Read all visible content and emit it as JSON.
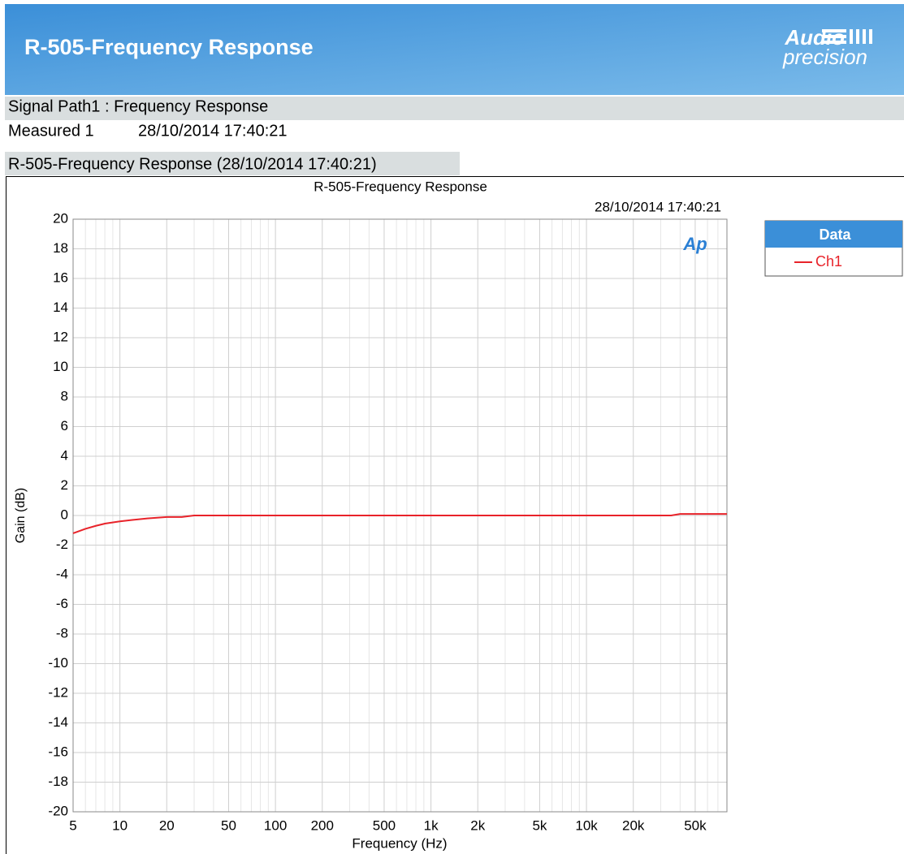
{
  "header": {
    "title": "R-505-Frequency Response",
    "logo_top": "Audio",
    "logo_bottom": "precision"
  },
  "sections": {
    "signal_path": "Signal Path1 : Frequency Response",
    "measured_label": "Measured 1",
    "measured_time": "28/10/2014 17:40:21",
    "graph_caption": "R-505-Frequency Response (28/10/2014 17:40:21)"
  },
  "chart_data": {
    "type": "line",
    "title": "R-505-Frequency Response",
    "timestamp": "28/10/2014 17:40:21",
    "watermark": "Ap",
    "xlabel": "Frequency (Hz)",
    "ylabel": "Gain (dB)",
    "legend_title": "Data",
    "xscale": "log",
    "grid": true,
    "x": [
      5,
      6,
      7,
      8,
      10,
      12,
      15,
      20,
      25,
      30,
      50,
      100,
      1000,
      10000,
      35000,
      40000,
      80000
    ],
    "series": [
      {
        "name": "Ch1",
        "color": "#e8232a",
        "values": [
          -1.2,
          -0.9,
          -0.7,
          -0.55,
          -0.4,
          -0.3,
          -0.2,
          -0.1,
          -0.1,
          0,
          0,
          0,
          0,
          0,
          0,
          0.1,
          0.1
        ]
      }
    ],
    "xlim": [
      5,
      80000
    ],
    "ylim": [
      -20,
      20
    ],
    "xticks": [
      5,
      10,
      20,
      50,
      100,
      200,
      500,
      {
        "value": 1000,
        "label": "1k"
      },
      {
        "value": 2000,
        "label": "2k"
      },
      {
        "value": 5000,
        "label": "5k"
      },
      {
        "value": 10000,
        "label": "10k"
      },
      {
        "value": 20000,
        "label": "20k"
      },
      {
        "value": 50000,
        "label": "50k"
      }
    ],
    "xminorticks": [
      6,
      7,
      8,
      9,
      30,
      40,
      60,
      70,
      80,
      90,
      300,
      400,
      600,
      700,
      800,
      900,
      3000,
      4000,
      6000,
      7000,
      8000,
      9000,
      30000,
      40000,
      60000,
      70000
    ],
    "yticks": [
      -20,
      -18,
      -16,
      -14,
      -12,
      -10,
      -8,
      -6,
      -4,
      -2,
      0,
      2,
      4,
      6,
      8,
      10,
      12,
      14,
      16,
      18,
      20
    ]
  }
}
